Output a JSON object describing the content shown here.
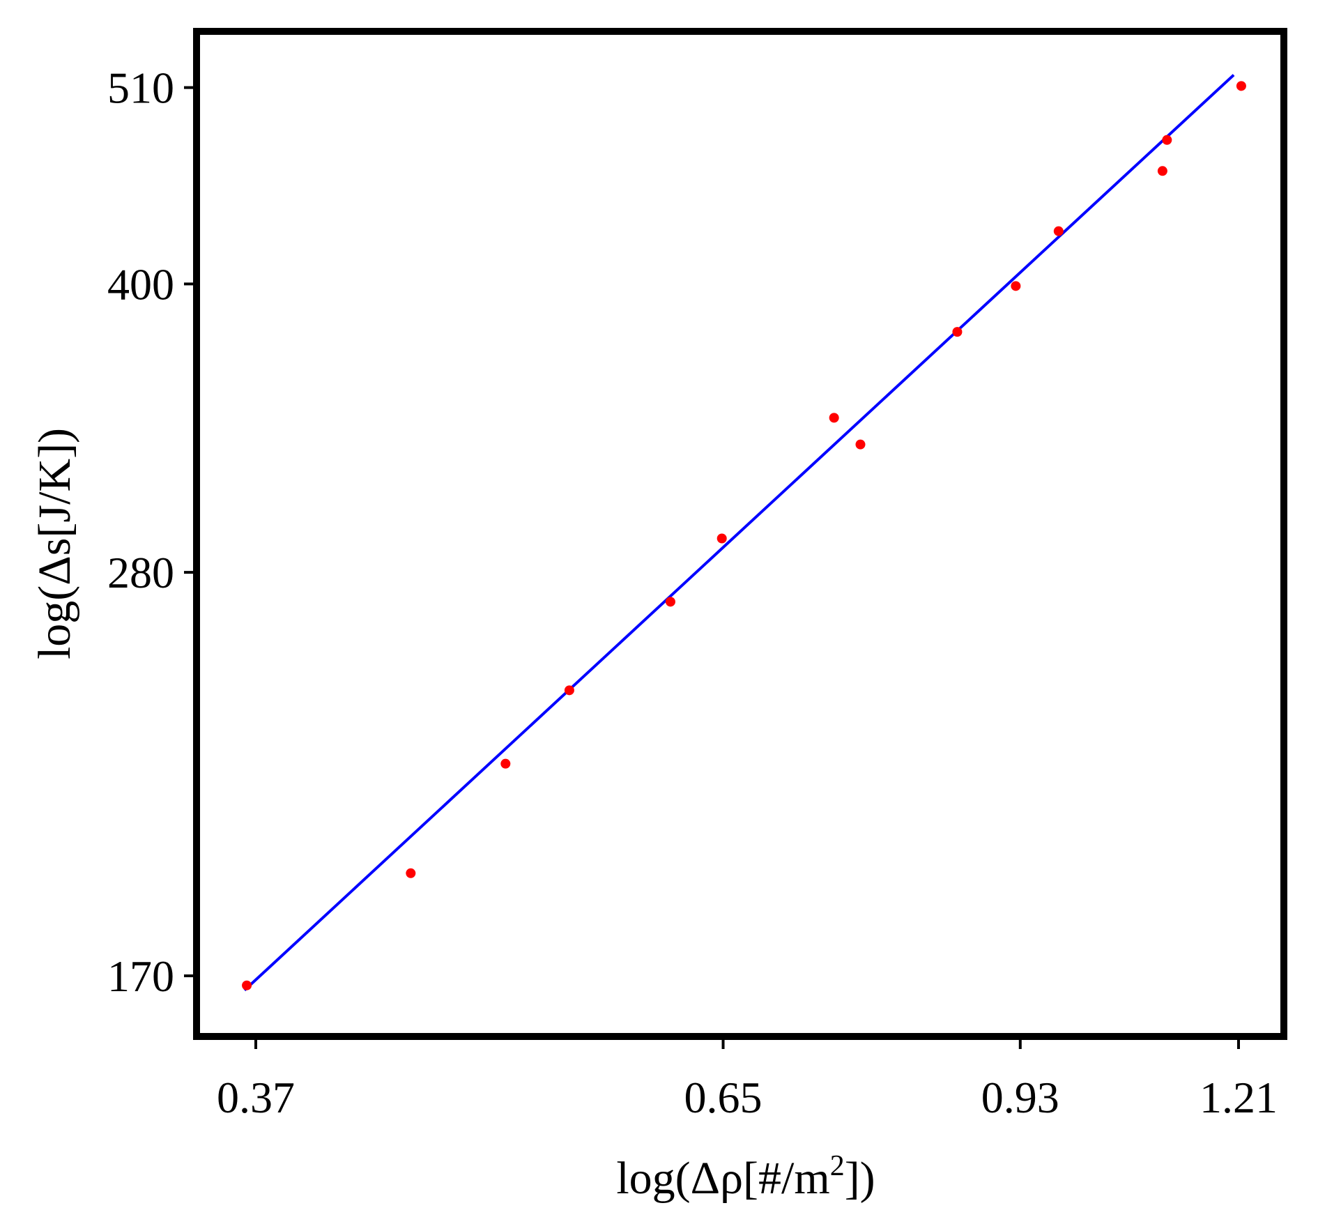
{
  "chart_data": {
    "type": "scatter",
    "title": "",
    "xlabel": "log(Δρ[#/m²])",
    "ylabel": "log(Δs[J/K])",
    "x_scale": "log",
    "y_scale": "log",
    "xlim": [
      0.345,
      1.26
    ],
    "ylim": [
      160,
      540
    ],
    "x_ticks": [
      0.37,
      0.65,
      0.93,
      1.21
    ],
    "x_tick_labels": [
      "0.37",
      "0.65",
      "0.93",
      "1.21"
    ],
    "y_ticks": [
      170,
      280,
      400,
      510
    ],
    "y_tick_labels": [
      "170",
      "280",
      "400",
      "510"
    ],
    "grid": false,
    "legend": "none",
    "series": [
      {
        "type": "scatter",
        "color": "#ff0000",
        "points": [
          [
            0.366,
            168
          ],
          [
            0.446,
            193
          ],
          [
            0.5,
            221
          ],
          [
            0.54,
            242
          ],
          [
            0.61,
            270
          ],
          [
            0.649,
            292
          ],
          [
            0.743,
            339
          ],
          [
            0.767,
            328
          ],
          [
            0.862,
            377
          ],
          [
            0.925,
            399
          ],
          [
            0.974,
            427
          ],
          [
            1.104,
            460
          ],
          [
            1.11,
            478
          ],
          [
            1.214,
            511
          ]
        ]
      },
      {
        "type": "line",
        "color": "#0000ff",
        "points": [
          [
            0.365,
            167
          ],
          [
            1.203,
            518
          ]
        ]
      }
    ]
  }
}
